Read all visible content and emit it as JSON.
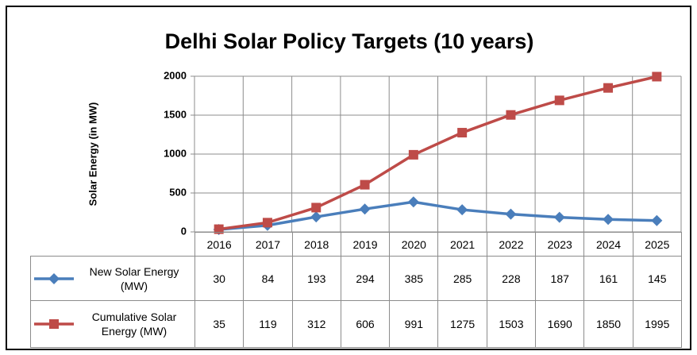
{
  "chart_data": {
    "type": "line",
    "title": "Delhi Solar Policy Targets (10 years)",
    "y_label": "Solar Energy (in MW)",
    "categories": [
      "2016",
      "2017",
      "2018",
      "2019",
      "2020",
      "2021",
      "2022",
      "2023",
      "2024",
      "2025"
    ],
    "series": [
      {
        "name": "New Solar Energy (MW)",
        "color": "#4a7ebb",
        "marker": "diamond",
        "values": [
          30,
          84,
          193,
          294,
          385,
          285,
          228,
          187,
          161,
          145
        ]
      },
      {
        "name": "Cumulative Solar Energy (MW)",
        "color": "#be4b48",
        "marker": "square",
        "values": [
          35,
          119,
          312,
          606,
          991,
          1275,
          1503,
          1690,
          1850,
          1995
        ]
      }
    ],
    "ylim": [
      0,
      2000
    ],
    "yticks": [
      0,
      500,
      1000,
      1500,
      2000
    ],
    "grid": true
  }
}
